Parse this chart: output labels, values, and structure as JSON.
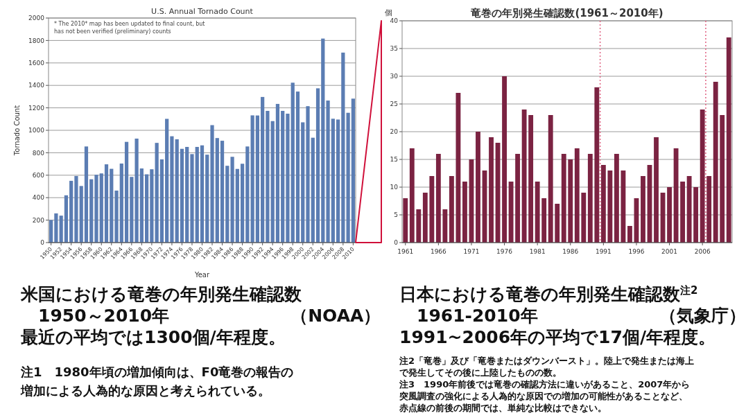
{
  "chart_data": [
    {
      "type": "bar",
      "title": "U.S. Annual Tornado Count",
      "xlabel": "Year",
      "ylabel": "Tornado Count",
      "color": "#5b7db3",
      "grid": "y",
      "x": [
        1950,
        1951,
        1952,
        1953,
        1954,
        1955,
        1956,
        1957,
        1958,
        1959,
        1960,
        1961,
        1962,
        1963,
        1964,
        1965,
        1966,
        1967,
        1968,
        1969,
        1970,
        1971,
        1972,
        1973,
        1974,
        1975,
        1976,
        1977,
        1978,
        1979,
        1980,
        1981,
        1982,
        1983,
        1984,
        1985,
        1986,
        1987,
        1988,
        1989,
        1990,
        1991,
        1992,
        1993,
        1994,
        1995,
        1996,
        1997,
        1998,
        1999,
        2000,
        2001,
        2002,
        2003,
        2004,
        2005,
        2006,
        2007,
        2008,
        2009,
        2010
      ],
      "values": [
        201,
        260,
        240,
        421,
        550,
        593,
        504,
        856,
        564,
        604,
        616,
        697,
        657,
        463,
        704,
        897,
        585,
        926,
        660,
        608,
        653,
        888,
        741,
        1102,
        947,
        920,
        835,
        852,
        788,
        852,
        866,
        783,
        1046,
        931,
        907,
        684,
        764,
        656,
        702,
        856,
        1133,
        1132,
        1297,
        1173,
        1082,
        1235,
        1173,
        1148,
        1424,
        1345,
        1071,
        1215,
        934,
        1374,
        1817,
        1265,
        1103,
        1096,
        1692,
        1156,
        1282
      ],
      "xlim": [
        1949.5,
        2010.5
      ],
      "xticks": [
        1950,
        1952,
        1954,
        1956,
        1958,
        1960,
        1962,
        1964,
        1966,
        1968,
        1970,
        1972,
        1974,
        1976,
        1978,
        1980,
        1982,
        1984,
        1986,
        1988,
        1990,
        1992,
        1994,
        1996,
        1998,
        2000,
        2002,
        2004,
        2006,
        2008,
        2010
      ],
      "ylim": [
        0,
        2000
      ],
      "yticks": [
        0,
        200,
        400,
        600,
        800,
        1000,
        1200,
        1400,
        1600,
        1800,
        2000
      ],
      "annotations": [
        "* The 2010* map has been updated to final count, but has not been verified (preliminary) counts",
        "米国における竜巻の年別発生確認数",
        "　1950～2010年　　　　　　　（NOAA）",
        "最近の平均では1300個/年程度。",
        "注1　1980年頃の増加傾向は、F0竜巻の報告の",
        "増加による人為的な原因と考えられている。"
      ]
    },
    {
      "type": "bar",
      "title": "竜巻の年別発生確認数(1961～2010年)",
      "ylabel": "個",
      "color": "#7b2342",
      "grid": "y",
      "x": [
        1961,
        1962,
        1963,
        1964,
        1965,
        1966,
        1967,
        1968,
        1969,
        1970,
        1971,
        1972,
        1973,
        1974,
        1975,
        1976,
        1977,
        1978,
        1979,
        1980,
        1981,
        1982,
        1983,
        1984,
        1985,
        1986,
        1987,
        1988,
        1989,
        1990,
        1991,
        1992,
        1993,
        1994,
        1995,
        1996,
        1997,
        1998,
        1999,
        2000,
        2001,
        2002,
        2003,
        2004,
        2005,
        2006,
        2007,
        2008,
        2009,
        2010
      ],
      "values": [
        8,
        17,
        6,
        9,
        12,
        16,
        6,
        12,
        27,
        11,
        15,
        20,
        13,
        19,
        18,
        30,
        11,
        16,
        24,
        23,
        11,
        8,
        23,
        7,
        16,
        15,
        17,
        9,
        16,
        28,
        14,
        13,
        16,
        13,
        3,
        8,
        12,
        14,
        19,
        9,
        10,
        17,
        11,
        12,
        10,
        24,
        12,
        29,
        23,
        37
      ],
      "xlim": [
        1960.5,
        2010.5
      ],
      "xticks": [
        1961,
        1966,
        1971,
        1976,
        1981,
        1986,
        1991,
        1996,
        2001,
        2006
      ],
      "ylim": [
        0,
        40
      ],
      "yticks": [
        0,
        5,
        10,
        15,
        20,
        25,
        30,
        35,
        40
      ],
      "ref_lines": [
        {
          "axis": "x",
          "value": 1990.5,
          "color": "#e06080",
          "line_style": "dotted"
        },
        {
          "axis": "x",
          "value": 2006.5,
          "color": "#e06080",
          "line_style": "dotted"
        }
      ],
      "annotations": [
        "日本における竜巻の年別発生確認数$^{注2}$",
        "　1961-2010年　　　　　　　（気象庁）",
        "1991~2006年の平均で17個/年程度。",
        "注2「竜巻」及び「竜巻またはダウンバースト」。陸上で発生または海上",
        "で発生してその後に上陸したものの数。",
        "注3　1990年前後では竜巻の確認方法に違いがあること、2007年から",
        "突風調査の強化による人為的な原因での増加の可能性があることなど、",
        "赤点線の前後の期間では、単純な比較はできない。"
      ]
    }
  ]
}
